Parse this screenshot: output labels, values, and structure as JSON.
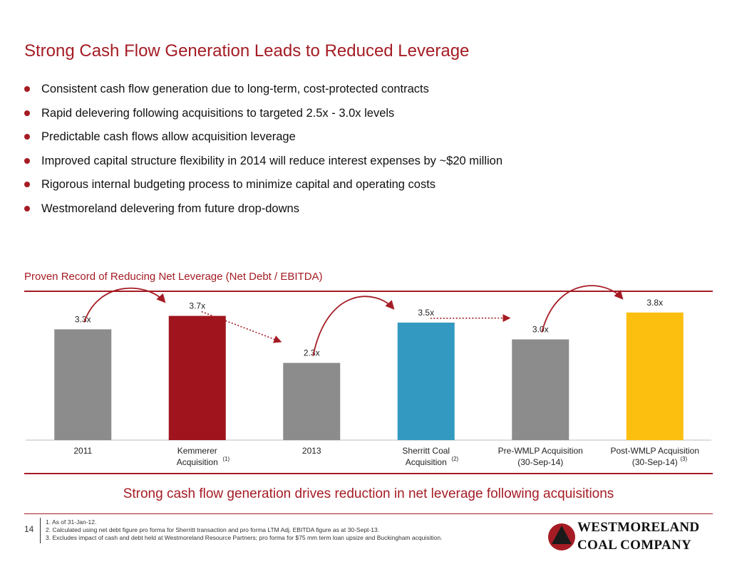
{
  "title": "Strong Cash Flow Generation Leads to Reduced Leverage",
  "bullets": [
    "Consistent cash flow generation due to long-term, cost-protected contracts",
    "Rapid delevering following acquisitions to targeted 2.5x - 3.0x levels",
    "Predictable cash flows allow acquisition leverage",
    "Improved capital structure flexibility in 2014 will reduce interest expenses by ~$20 million",
    "Rigorous internal budgeting process to minimize capital and operating costs",
    "Westmoreland delevering from future drop-downs"
  ],
  "section_title": "Proven Record of Reducing Net Leverage (Net Debt / EBITDA)",
  "chart_data": {
    "type": "bar",
    "categories": [
      {
        "line1": "2011",
        "line2": "",
        "note": ""
      },
      {
        "line1": "Kemmerer",
        "line2": "Acquisition",
        "note": "(1)"
      },
      {
        "line1": "2013",
        "line2": "",
        "note": ""
      },
      {
        "line1": "Sherritt Coal",
        "line2": "Acquisition",
        "note": "(2)"
      },
      {
        "line1": "Pre-WMLP Acquisition",
        "line2": "(30-Sep-14)",
        "note": ""
      },
      {
        "line1": "Post-WMLP Acquisition",
        "line2": "(30-Sep-14)",
        "note": "(3)"
      }
    ],
    "values": [
      3.3,
      3.7,
      2.3,
      3.5,
      3.0,
      3.8
    ],
    "value_labels": [
      "3.3x",
      "3.7x",
      "2.3x",
      "3.5x",
      "3.0x",
      "3.8x"
    ],
    "colors": [
      "#8c8c8c",
      "#a0151d",
      "#8c8c8c",
      "#3399c1",
      "#8c8c8c",
      "#fcbf10"
    ],
    "ylim": [
      0,
      4.2
    ],
    "arrows": [
      {
        "from": 0,
        "to": 1,
        "style": "solid"
      },
      {
        "from": 1,
        "to": 2,
        "style": "dotted"
      },
      {
        "from": 2,
        "to": 3,
        "style": "solid"
      },
      {
        "from": 3,
        "to": 4,
        "style": "dotted"
      },
      {
        "from": 4,
        "to": 5,
        "style": "solid"
      }
    ],
    "grid": false,
    "legend": "none"
  },
  "tagline": "Strong cash flow generation drives reduction in net leverage following acquisitions",
  "page_number": "14",
  "footnotes": [
    "1. As of 31-Jan-12.",
    "2. Calculated using net debt figure pro forma for Sherritt transaction and pro forma LTM Adj. EBITDA figure as at 30-Sept-13.",
    "3. Excludes impact of cash and debt held at Westmoreland Resource Partners; pro forma for $75 mm term loan upsize and Buckingham acquisition."
  ],
  "logo": {
    "line1": "WESTMORELAND",
    "line2": "COAL COMPANY",
    "icon": "red-triangle-circle-logo-icon"
  },
  "colors": {
    "accent": "#a51c24",
    "text": "#111111"
  }
}
